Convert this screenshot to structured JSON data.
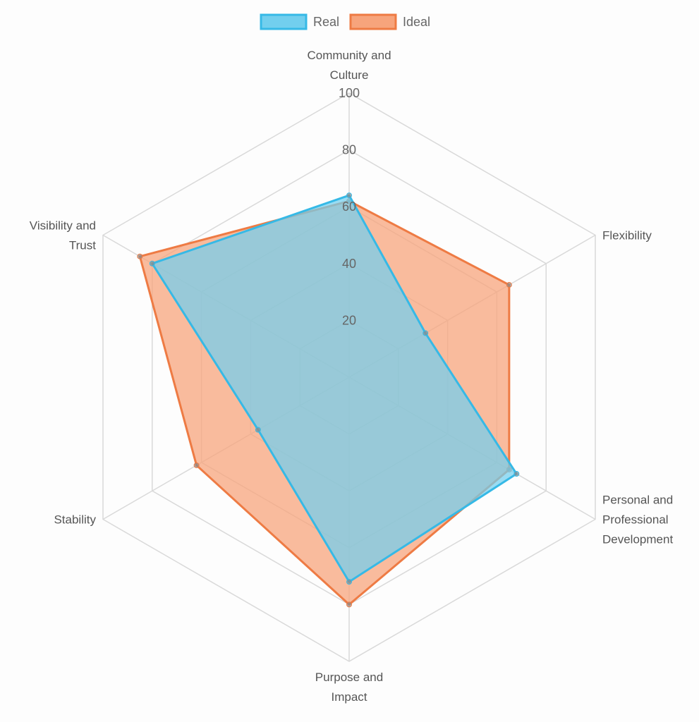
{
  "chart_data": {
    "type": "radar",
    "title": "",
    "axes": [
      [
        "Community and",
        "Culture"
      ],
      [
        "Flexibility"
      ],
      [
        "Personal and",
        "Professional",
        "Development"
      ],
      [
        "Purpose and",
        "Impact"
      ],
      [
        "Stability"
      ],
      [
        "Visibility and",
        "Trust"
      ]
    ],
    "r_ticks": [
      "20",
      "40",
      "60",
      "80",
      "100"
    ],
    "r_range": [
      0,
      100
    ],
    "series": [
      {
        "name": "Real",
        "values": [
          64,
          31,
          68,
          72,
          37,
          80
        ],
        "stroke": "#36b9e6",
        "fill": "#72cfee"
      },
      {
        "name": "Ideal",
        "values": [
          62,
          65,
          65,
          80,
          62,
          85
        ],
        "stroke": "#ee7b44",
        "fill": "#f7a47c"
      }
    ],
    "grid": true,
    "legend_position": "top-center"
  }
}
